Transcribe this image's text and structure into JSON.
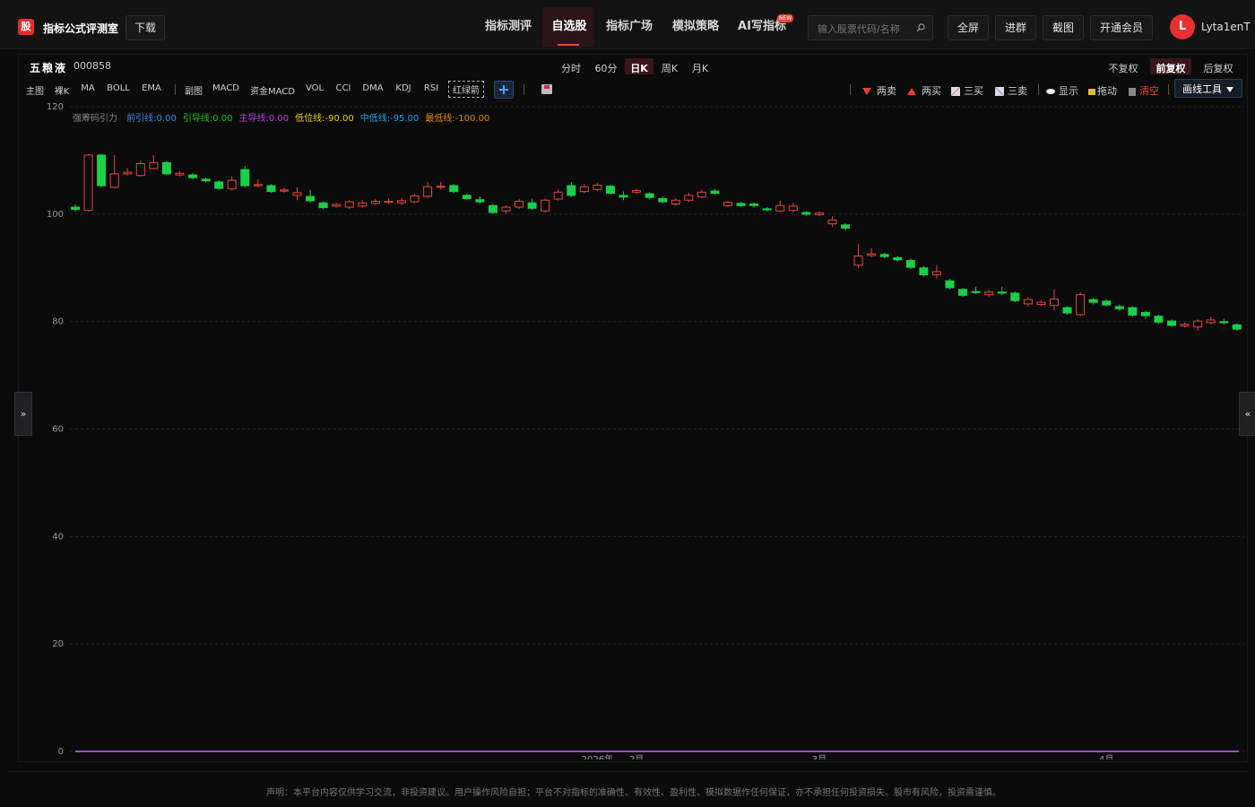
{
  "header": {
    "logo": "股",
    "site": "指标公式评测室",
    "download": "下载",
    "nav": [
      "指标测评",
      "自选股",
      "指标广场",
      "模拟策略",
      "AI写指标"
    ],
    "new_badge": "NEW",
    "search_placeholder": "输入股票代码/名称",
    "buttons": [
      "全屏",
      "进群",
      "截图",
      "开通会员"
    ],
    "avatar": "L",
    "user": "Lyta1enT"
  },
  "periods": [
    "分时",
    "60分",
    "日K",
    "周K",
    "月K"
  ],
  "adjust": [
    "不复权",
    "前复权",
    "后复权"
  ],
  "main_tools": [
    "主图",
    "裸K",
    "MA",
    "BOLL",
    "EMA"
  ],
  "sub_tools": [
    "副图",
    "MACD",
    "资金MACD",
    "VOL",
    "CCI",
    "DMA",
    "KDJ",
    "RSI",
    "红绿箭"
  ],
  "draw_tools": [
    "两卖",
    "两买",
    "三买",
    "三卖",
    "显示",
    "拖动",
    "清空",
    "画线工具"
  ],
  "side": [
    "»",
    "«"
  ],
  "chart_data": {
    "type": "candlestick",
    "title": "五粮液",
    "subtitle": "000858",
    "indicator_name": "强筹码引力",
    "indicators": [
      {
        "label": "前引线:0.00",
        "value": 0,
        "color": "#3f8de0"
      },
      {
        "label": "引导线:0.00",
        "value": 0,
        "color": "#22c02a"
      },
      {
        "label": "主导线:0.00",
        "value": 0,
        "color": "#c040d8"
      },
      {
        "label": "低位线:-90.00",
        "value": -90,
        "color": "#e6d21a"
      },
      {
        "label": "中低线:-95.00",
        "value": -95,
        "color": "#1fa7e0"
      },
      {
        "label": "最低线:-100.00",
        "value": -100,
        "color": "#e08a1a"
      }
    ],
    "categories": [
      null,
      null,
      null,
      null,
      null,
      null,
      null,
      null,
      null,
      null,
      null,
      null,
      null,
      null,
      null,
      null,
      null,
      null,
      null,
      null,
      null,
      null,
      null,
      null,
      null,
      null,
      null,
      null,
      null,
      null,
      null,
      null,
      null,
      null,
      null,
      null,
      null,
      null,
      null,
      null,
      "2026年",
      null,
      null,
      "2月",
      null,
      null,
      null,
      null,
      null,
      null,
      null,
      null,
      null,
      null,
      null,
      null,
      null,
      "3月",
      null,
      null,
      null,
      null,
      null,
      null,
      null,
      null,
      null,
      null,
      null,
      null,
      null,
      null,
      null,
      null,
      null,
      null,
      null,
      null,
      null,
      "4月",
      null,
      null,
      null,
      null,
      null,
      null,
      null,
      null,
      null,
      null
    ],
    "open": [
      101.3,
      100.7,
      111,
      105,
      107.5,
      107.2,
      108.5,
      109.6,
      107.3,
      107.3,
      106.5,
      106,
      104.7,
      108.3,
      105.3,
      105.3,
      104.3,
      103.5,
      103.3,
      102.1,
      101.5,
      101.3,
      101.5,
      102,
      102.2,
      102.1,
      102.3,
      103.3,
      105,
      105.3,
      103.5,
      102.7,
      101.6,
      100.6,
      101.3,
      102.1,
      100.6,
      102.8,
      105.3,
      104.2,
      104.6,
      105.2,
      103.5,
      104.1,
      103.8,
      102.9,
      101.9,
      102.6,
      103.2,
      104.3,
      101.6,
      102,
      101.9,
      101,
      100.6,
      100.7,
      100.3,
      99.9,
      98.2,
      98,
      90.5,
      92.3,
      92.5,
      91.9,
      91.4,
      90,
      88.7,
      87.6,
      86,
      85.6,
      85,
      85.5,
      85.3,
      83.3,
      83.2,
      83,
      82.6,
      81.3,
      84.1,
      83.8,
      82.8,
      82.6,
      81.7,
      81,
      80.1,
      79.2,
      79,
      79.8,
      80,
      79.4
    ],
    "high": [
      101.8,
      111.2,
      111.2,
      111,
      108.5,
      110,
      111,
      109.9,
      108,
      107.6,
      106.8,
      106.3,
      107,
      109,
      106.5,
      105.6,
      105,
      105,
      104.5,
      102.4,
      102.1,
      102.6,
      102.6,
      102.8,
      102.9,
      103,
      103.8,
      106,
      106,
      105.6,
      103.8,
      103.3,
      101.9,
      101.6,
      102.8,
      102.9,
      102.9,
      104.6,
      106,
      105.6,
      105.8,
      105.5,
      104.2,
      104.7,
      104.1,
      103.3,
      103,
      104,
      104.6,
      104.7,
      102.5,
      102.3,
      102.2,
      101.3,
      102.5,
      102.1,
      100.6,
      100.5,
      99.6,
      98.3,
      94.5,
      93.7,
      92.8,
      92.2,
      91.7,
      90.3,
      90.5,
      87.9,
      86.3,
      86.5,
      86,
      86.5,
      85.6,
      84.6,
      84,
      86,
      82.9,
      85.5,
      84.4,
      84.2,
      83.2,
      82.9,
      82,
      81.3,
      80.4,
      79.8,
      80.4,
      80.9,
      80.5,
      79.7
    ],
    "low": [
      100.5,
      100.5,
      105,
      104.8,
      107.2,
      107,
      108.3,
      107.3,
      107,
      106.5,
      105.9,
      104.5,
      104.4,
      105,
      105,
      103.9,
      104,
      102.6,
      102.2,
      100.9,
      101.2,
      101,
      101.2,
      101.7,
      101.9,
      101.7,
      102,
      103,
      104.6,
      103.9,
      102.6,
      101.9,
      100,
      100,
      101,
      100.8,
      100.3,
      102.5,
      103.2,
      103.9,
      104.3,
      103.6,
      102.6,
      103.8,
      102.8,
      102,
      101.5,
      102.3,
      102.9,
      103.6,
      101.3,
      101.3,
      101.2,
      100.5,
      100.3,
      100.3,
      99.7,
      99.6,
      97.6,
      97,
      90,
      92,
      91.8,
      91.2,
      89.8,
      88.4,
      88,
      86,
      84.6,
      85.1,
      84.6,
      84.9,
      83.6,
      82.8,
      82.9,
      82,
      81.3,
      81,
      83.2,
      82.8,
      82,
      80.9,
      80.5,
      79.6,
      79,
      78.9,
      78.3,
      79.5,
      79.5,
      78.3
    ],
    "close": [
      100.9,
      111,
      105.3,
      107.5,
      107.8,
      109.4,
      109.6,
      107.5,
      107.6,
      106.8,
      106.2,
      104.8,
      106.3,
      105.3,
      105.5,
      104.2,
      104.5,
      104,
      102.5,
      101.2,
      101.8,
      102.3,
      102.1,
      102.4,
      102.4,
      102.5,
      103.4,
      105.1,
      105.2,
      104.2,
      102.9,
      102.3,
      100.3,
      101.3,
      102.4,
      101.1,
      102.6,
      104.1,
      103.5,
      105.1,
      105.4,
      103.9,
      103.2,
      104.4,
      103.1,
      102.3,
      102.6,
      103.5,
      104.1,
      103.9,
      102.2,
      101.6,
      101.6,
      100.8,
      101.6,
      101.5,
      100,
      100.2,
      98.9,
      97.4,
      92.2,
      92.6,
      92.1,
      91.5,
      90.1,
      88.7,
      89.3,
      86.3,
      84.9,
      85.4,
      85.5,
      85.3,
      83.9,
      84.1,
      83.6,
      84.2,
      81.6,
      85,
      83.6,
      83.1,
      82.4,
      81.2,
      81.1,
      79.9,
      79.3,
      79.5,
      80.1,
      80.3,
      79.8,
      78.6
    ],
    "up_color": "#e8453c",
    "down_color": "#1ccf48",
    "ylim": [
      0,
      120
    ],
    "yticks": [
      0,
      20,
      40,
      60,
      80,
      100,
      120
    ],
    "grid": true
  },
  "footer": "声明：本平台内容仅供学习交流，非投资建议。用户操作风险自担；平台不对指标的准确性、有效性、盈利性、模拟数据作任何保证，亦不承担任何投资损失。股市有风险，投资需谨慎。"
}
